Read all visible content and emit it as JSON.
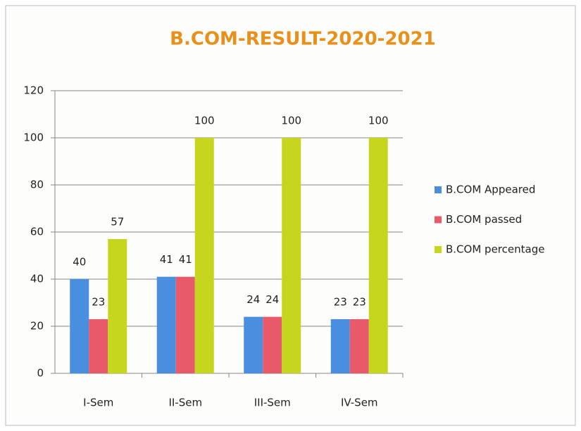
{
  "chart_data": {
    "type": "bar",
    "title": "B.COM-RESULT-2020-2021",
    "categories": [
      "I-Sem",
      "II-Sem",
      "III-Sem",
      "IV-Sem"
    ],
    "series": [
      {
        "name": "B.COM Appeared",
        "color": "#4a8ee0",
        "values": [
          40,
          41,
          24,
          23
        ]
      },
      {
        "name": "B.COM passed",
        "color": "#e8596a",
        "values": [
          23,
          41,
          24,
          23
        ]
      },
      {
        "name": "B.COM percentage",
        "color": "#c6d61e",
        "values": [
          57,
          100,
          100,
          100
        ]
      }
    ],
    "ylim": [
      0,
      120
    ],
    "yticks": [
      0,
      20,
      40,
      60,
      80,
      100,
      120
    ],
    "grid": true,
    "legend": "right"
  }
}
